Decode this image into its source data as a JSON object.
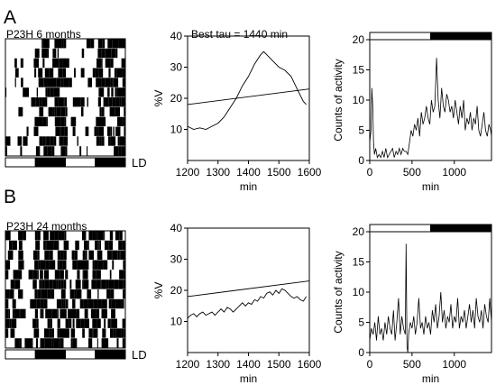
{
  "panel_labels": [
    "A",
    "B"
  ],
  "rows": [
    {
      "actogram": {
        "label": "P23H 6 months",
        "ld_label": "LD"
      },
      "periodogram": {
        "title": "Best tau = 1440 min"
      },
      "activity": {}
    },
    {
      "actogram": {
        "label": "P23H 24 months",
        "ld_label": "LD"
      },
      "periodogram": {
        "title": ""
      },
      "activity": {}
    }
  ],
  "chart_data": [
    {
      "type": "heatmap",
      "title": "P23H 6 months",
      "description_rows": 12,
      "ld_bar": [
        "light",
        "dark",
        "light",
        "dark"
      ],
      "legend": "LD"
    },
    {
      "type": "line",
      "title": "Best tau = 1440 min",
      "xlabel": "min",
      "ylabel": "%V",
      "xlim": [
        1200,
        1600
      ],
      "ylim": [
        0,
        40
      ],
      "xticks": [
        1200,
        1300,
        1400,
        1500,
        1600
      ],
      "yticks": [
        10,
        20,
        30,
        40
      ],
      "series": [
        {
          "x": [
            1200,
            1220,
            1240,
            1260,
            1280,
            1300,
            1320,
            1340,
            1360,
            1380,
            1400,
            1420,
            1440,
            1450,
            1460,
            1480,
            1500,
            1520,
            1540,
            1560,
            1580,
            1590
          ],
          "values": [
            11,
            10,
            10.5,
            10,
            11,
            12,
            14,
            17,
            20,
            24,
            27,
            31,
            34,
            35,
            34,
            32,
            30,
            29,
            27,
            23,
            19,
            18
          ]
        },
        {
          "x": [
            1200,
            1600
          ],
          "values": [
            18,
            23
          ]
        }
      ]
    },
    {
      "type": "line",
      "xlabel": "min",
      "ylabel": "Counts of activity",
      "xlim": [
        0,
        1440
      ],
      "ylim": [
        0,
        20
      ],
      "xticks": [
        0,
        500,
        1000
      ],
      "yticks": [
        0,
        5,
        10,
        15,
        20
      ],
      "ld_bar": {
        "light": [
          0,
          720
        ],
        "dark": [
          720,
          1440
        ]
      },
      "series": [
        {
          "x": [
            0,
            15,
            25,
            35,
            45,
            55,
            70,
            90,
            110,
            130,
            150,
            170,
            190,
            210,
            230,
            250,
            270,
            290,
            310,
            330,
            350,
            370,
            390,
            410,
            430,
            450,
            470,
            490,
            510,
            530,
            550,
            570,
            590,
            610,
            630,
            650,
            670,
            690,
            710,
            730,
            750,
            770,
            790,
            810,
            830,
            850,
            870,
            890,
            910,
            930,
            950,
            970,
            990,
            1010,
            1030,
            1050,
            1070,
            1090,
            1110,
            1130,
            1150,
            1170,
            1190,
            1210,
            1230,
            1250,
            1270,
            1290,
            1310,
            1330,
            1350,
            1370,
            1390,
            1410,
            1430,
            1440
          ],
          "values": [
            3,
            5,
            12,
            9,
            3,
            1,
            2,
            0.5,
            1,
            0.5,
            1.5,
            0.5,
            2,
            0.5,
            1,
            1.5,
            2,
            0.5,
            1.5,
            1,
            2,
            1,
            2,
            1.5,
            1.5,
            1,
            3,
            5,
            4,
            6,
            5,
            7,
            4,
            8,
            6,
            7,
            9,
            7,
            6,
            10,
            8,
            9,
            17,
            10,
            7,
            12,
            9,
            8,
            11,
            10,
            8,
            9,
            7,
            10,
            8,
            6,
            9,
            7,
            10,
            5,
            7,
            6,
            8,
            5,
            7,
            6,
            9,
            5,
            4,
            6,
            8,
            5,
            4,
            6,
            5,
            4
          ]
        }
      ]
    },
    {
      "type": "heatmap",
      "title": "P23H 24 months",
      "description_rows": 12,
      "ld_bar": [
        "light",
        "dark",
        "light",
        "dark"
      ],
      "legend": "LD"
    },
    {
      "type": "line",
      "xlabel": "min",
      "ylabel": "%V",
      "xlim": [
        1200,
        1600
      ],
      "ylim": [
        0,
        40
      ],
      "xticks": [
        1200,
        1300,
        1400,
        1500,
        1600
      ],
      "yticks": [
        10,
        20,
        30,
        40
      ],
      "series": [
        {
          "x": [
            1200,
            1210,
            1220,
            1230,
            1240,
            1250,
            1260,
            1270,
            1280,
            1290,
            1300,
            1310,
            1320,
            1330,
            1340,
            1350,
            1360,
            1370,
            1380,
            1390,
            1400,
            1410,
            1420,
            1430,
            1440,
            1450,
            1460,
            1470,
            1480,
            1490,
            1500,
            1510,
            1520,
            1530,
            1540,
            1550,
            1560,
            1570,
            1580,
            1590
          ],
          "values": [
            11,
            12,
            12.5,
            11.5,
            12.5,
            13,
            12,
            12.5,
            13,
            12,
            13,
            14,
            13,
            14.5,
            14,
            13,
            14,
            15,
            16,
            15,
            16,
            15.5,
            17,
            16.5,
            18,
            17.5,
            19,
            19.5,
            18.5,
            20,
            19,
            20.5,
            20,
            19,
            18,
            17.5,
            18,
            17,
            16.5,
            18
          ]
        },
        {
          "x": [
            1200,
            1600
          ],
          "values": [
            18,
            23
          ]
        }
      ]
    },
    {
      "type": "line",
      "xlabel": "min",
      "ylabel": "Counts of activity",
      "xlim": [
        0,
        1440
      ],
      "ylim": [
        0,
        20
      ],
      "xticks": [
        0,
        500,
        1000
      ],
      "yticks": [
        0,
        5,
        10,
        15,
        20
      ],
      "ld_bar": {
        "light": [
          0,
          720
        ],
        "dark": [
          720,
          1440
        ]
      },
      "series": [
        {
          "x": [
            0,
            20,
            40,
            60,
            80,
            100,
            120,
            140,
            160,
            180,
            200,
            220,
            240,
            260,
            280,
            300,
            320,
            340,
            360,
            380,
            400,
            420,
            430,
            440,
            450,
            460,
            480,
            500,
            520,
            540,
            560,
            580,
            600,
            620,
            640,
            660,
            680,
            700,
            720,
            740,
            760,
            780,
            800,
            820,
            840,
            860,
            880,
            900,
            920,
            940,
            960,
            980,
            1000,
            1020,
            1040,
            1060,
            1080,
            1100,
            1120,
            1140,
            1160,
            1180,
            1200,
            1220,
            1240,
            1260,
            1280,
            1300,
            1320,
            1340,
            1360,
            1380,
            1400,
            1420,
            1440
          ],
          "values": [
            2,
            4,
            3,
            5,
            2,
            6,
            3,
            4,
            2,
            5,
            3,
            6,
            4,
            3,
            7,
            2,
            5,
            9,
            3,
            6,
            4,
            3,
            18,
            1,
            0,
            3,
            5,
            4,
            6,
            3,
            5,
            9,
            4,
            5,
            3,
            6,
            4,
            5,
            3,
            7,
            5,
            8,
            4,
            6,
            10,
            5,
            7,
            4,
            6,
            5,
            8,
            4,
            6,
            5,
            9,
            4,
            6,
            5,
            7,
            4,
            6,
            8,
            5,
            7,
            4,
            9,
            6,
            5,
            7,
            4,
            8,
            6,
            5,
            9,
            5
          ]
        }
      ]
    }
  ]
}
